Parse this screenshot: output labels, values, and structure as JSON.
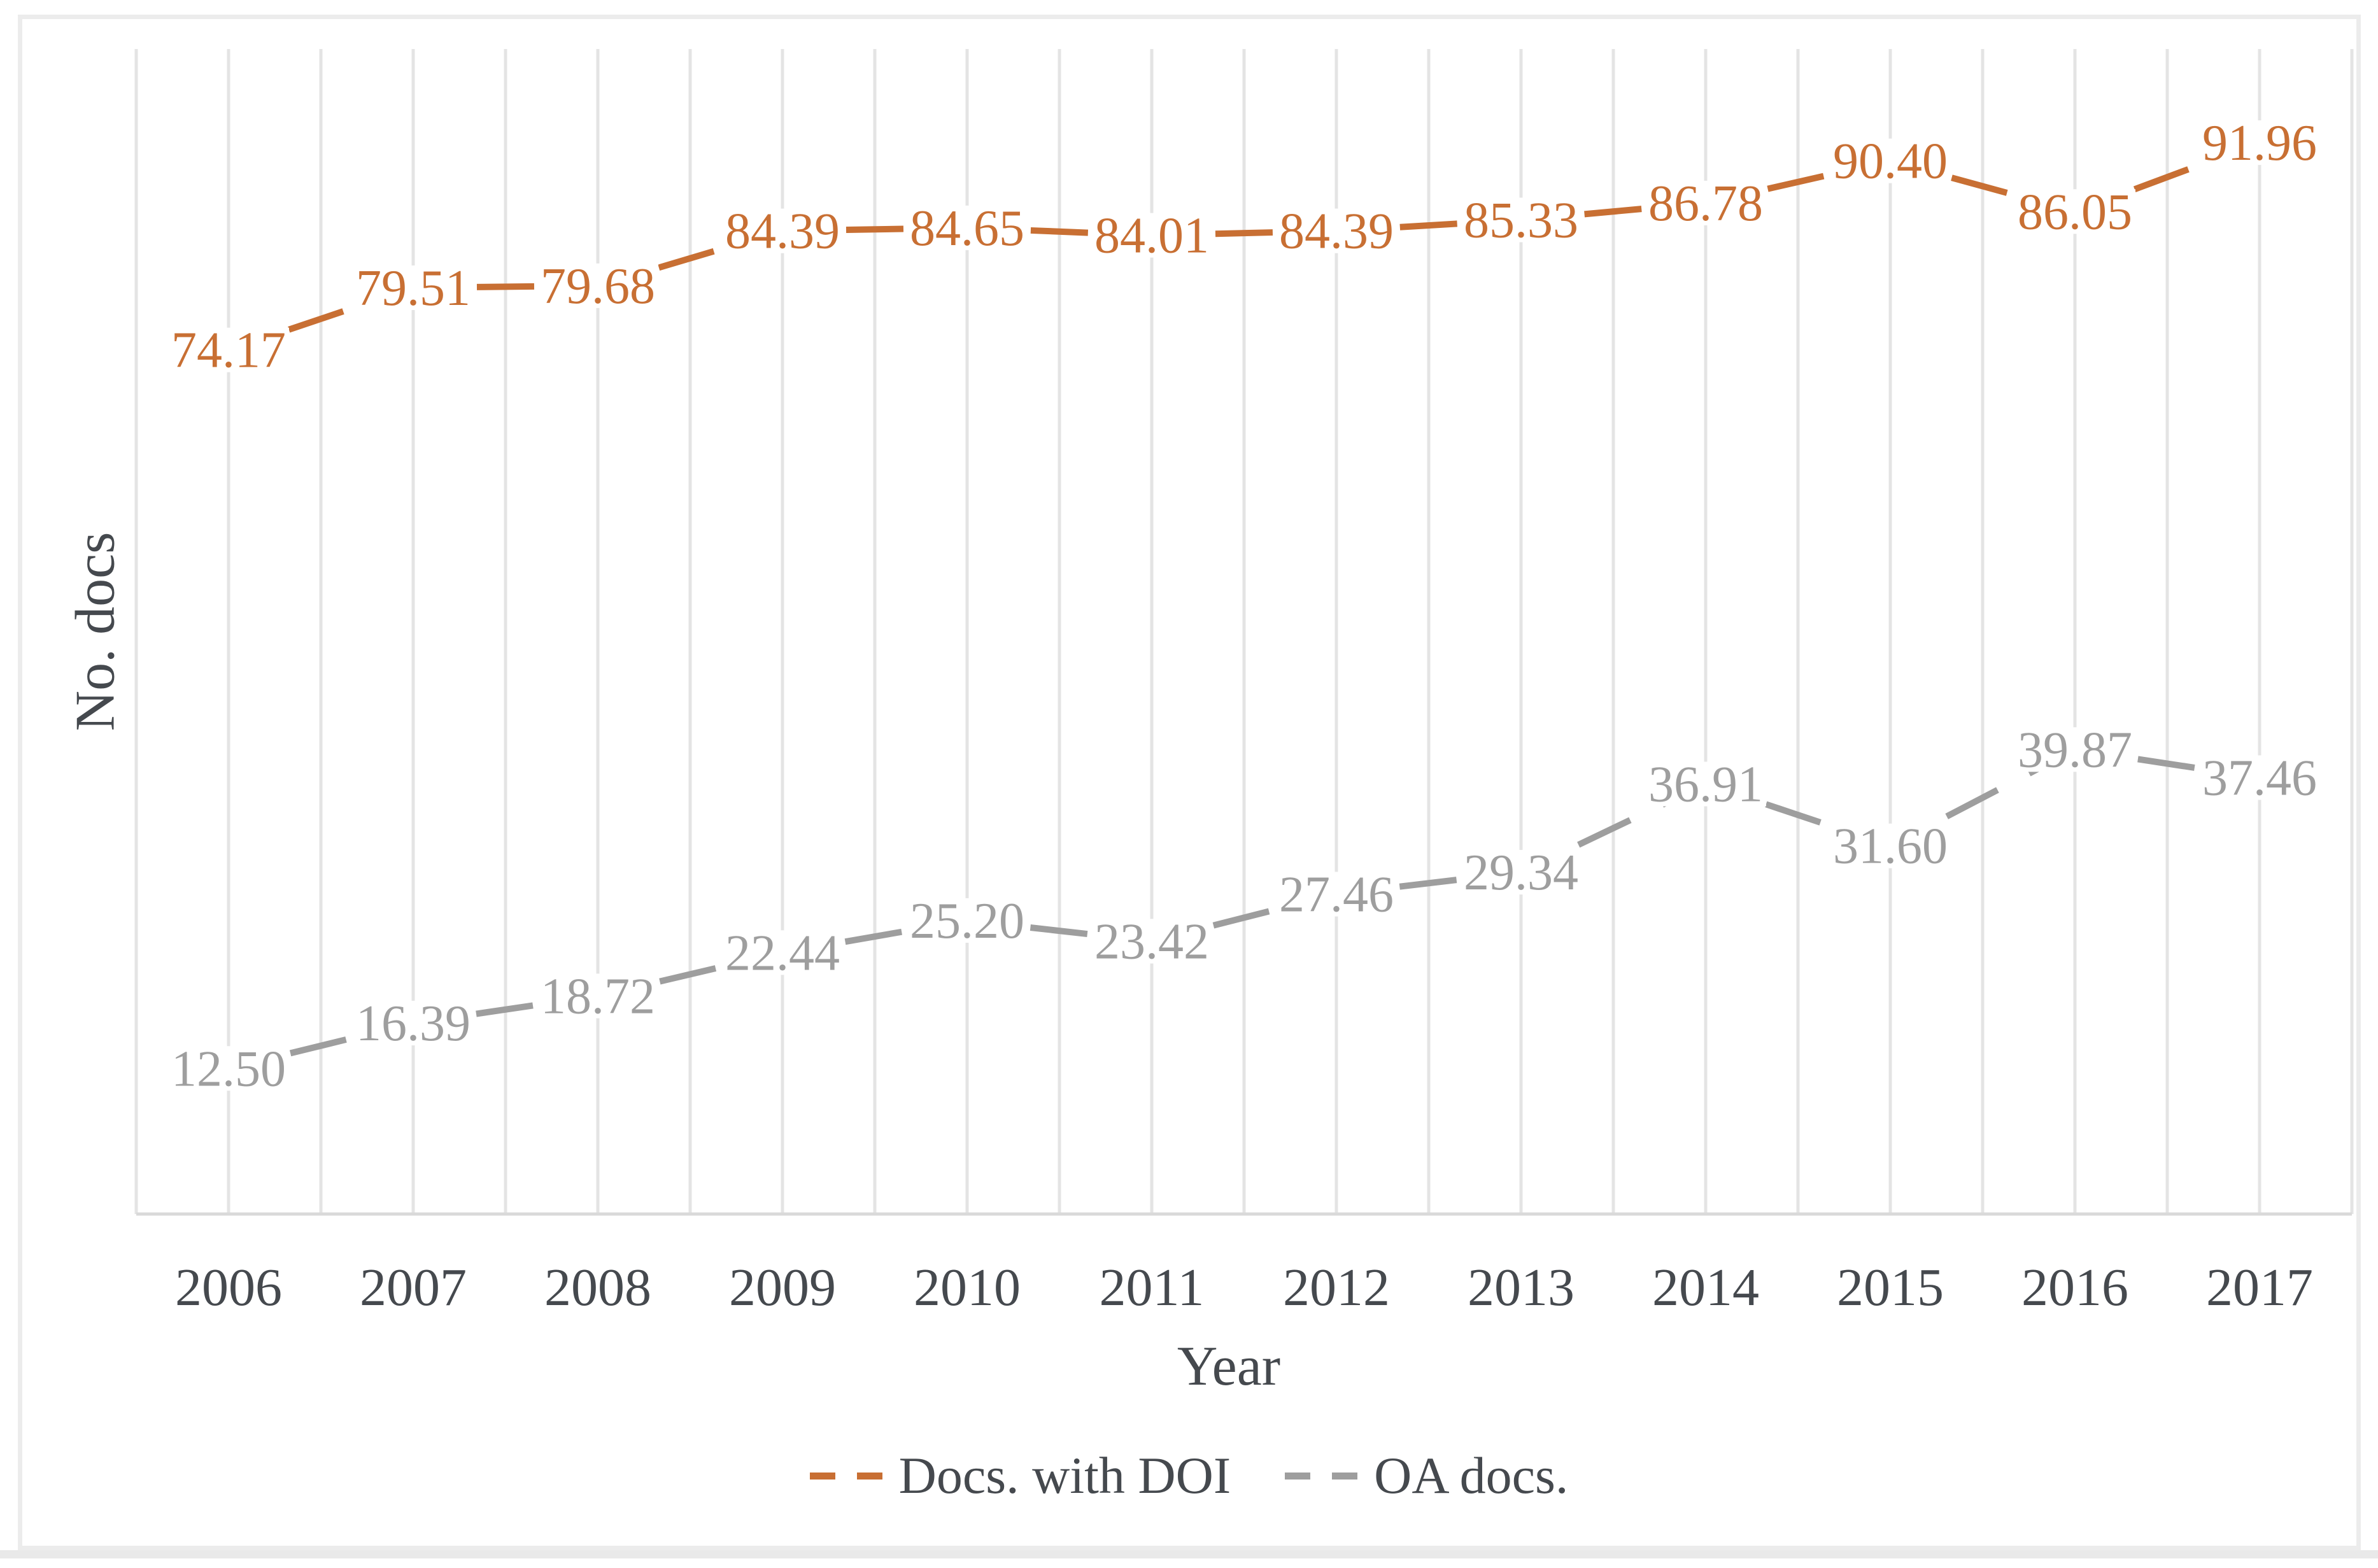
{
  "figure": {
    "background_color": "#ffffff",
    "frame_border_color": "#ececec",
    "bottom_strip_color": "#e9e9e9"
  },
  "chart_data": {
    "type": "line",
    "title": "",
    "xlabel": "Year",
    "ylabel": "No. docs",
    "categories": [
      "2006",
      "2007",
      "2008",
      "2009",
      "2010",
      "2011",
      "2012",
      "2013",
      "2014",
      "2015",
      "2016",
      "2017"
    ],
    "series": [
      {
        "name": "Docs. with DOI",
        "color": "#c86f33",
        "values": [
          74.17,
          79.51,
          79.68,
          84.39,
          84.65,
          84.01,
          84.39,
          85.33,
          86.78,
          90.4,
          86.05,
          91.96
        ]
      },
      {
        "name": "OA docs.",
        "color": "#9e9e9e",
        "values": [
          12.5,
          16.39,
          18.72,
          22.44,
          25.2,
          23.42,
          27.46,
          29.34,
          36.91,
          31.6,
          39.87,
          37.46
        ]
      }
    ],
    "ylim": [
      0,
      100
    ],
    "y_axis_tick_labels_visible": false,
    "grid": "vertical-only, gridline at every half category interval",
    "line_style": "dashed",
    "data_labels": "centered on points, formatted to 2 decimals",
    "legend_position": "bottom-center",
    "style": {
      "axis_text_color": "#45494e",
      "gridline_color": "#e4e4e4",
      "axis_line_color": "#d9d9d9",
      "data_label_font_px": 80,
      "tick_label_font_px": 84,
      "axis_title_font_px": 88
    }
  }
}
